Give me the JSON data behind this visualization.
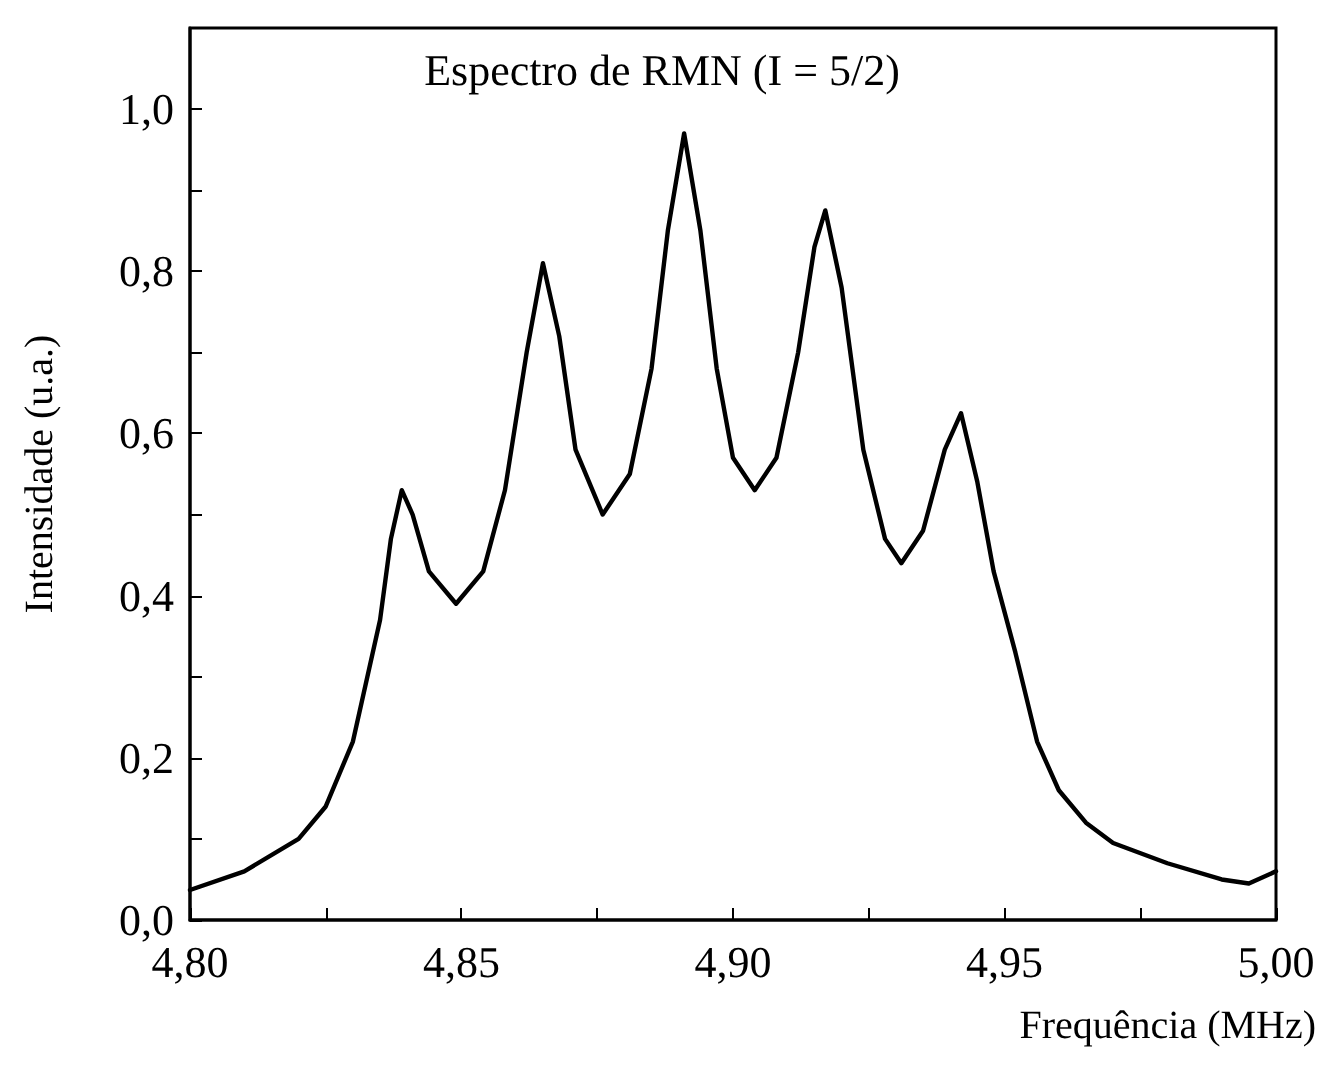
{
  "chart_data": {
    "type": "line",
    "annotations": [
      "Espectro de RMN (I = 5/2)"
    ],
    "xlabel": "Frequência (MHz)",
    "ylabel": "Intensidade (u.a.)",
    "xlim": [
      4.8,
      5.0
    ],
    "xticks": [
      {
        "value": 4.8,
        "label": "4,80"
      },
      {
        "value": 4.825,
        "label": null
      },
      {
        "value": 4.85,
        "label": "4,85"
      },
      {
        "value": 4.875,
        "label": null
      },
      {
        "value": 4.9,
        "label": "4,90"
      },
      {
        "value": 4.925,
        "label": null
      },
      {
        "value": 4.95,
        "label": "4,95"
      },
      {
        "value": 4.975,
        "label": null
      },
      {
        "value": 5.0,
        "label": "5,00"
      }
    ],
    "ylim": [
      0,
      1.1
    ],
    "yticks": [
      {
        "value": 0,
        "label": "0,0"
      },
      {
        "value": 0.1,
        "label": null
      },
      {
        "value": 0.2,
        "label": "0,2"
      },
      {
        "value": 0.3,
        "label": null
      },
      {
        "value": 0.4,
        "label": "0,4"
      },
      {
        "value": 0.5,
        "label": null
      },
      {
        "value": 0.6,
        "label": "0,6"
      },
      {
        "value": 0.7,
        "label": null
      },
      {
        "value": 0.8,
        "label": "0,8"
      },
      {
        "value": 0.9,
        "label": null
      },
      {
        "value": 1.0,
        "label": "1,0"
      }
    ],
    "grid": false,
    "marker": "none",
    "line_style": "solid",
    "x": [
      4.8,
      4.81,
      4.82,
      4.825,
      4.83,
      4.835,
      4.837,
      4.839,
      4.841,
      4.844,
      4.849,
      4.854,
      4.858,
      4.862,
      4.865,
      4.868,
      4.871,
      4.876,
      4.881,
      4.885,
      4.888,
      4.891,
      4.894,
      4.897,
      4.9,
      4.904,
      4.908,
      4.912,
      4.915,
      4.917,
      4.92,
      4.924,
      4.928,
      4.931,
      4.935,
      4.939,
      4.942,
      4.945,
      4.948,
      4.952,
      4.956,
      4.96,
      4.965,
      4.97,
      4.98,
      4.99,
      4.995,
      5.0
    ],
    "series": [
      {
        "color": "#000000",
        "values": [
          0.037,
          0.06,
          0.1,
          0.14,
          0.22,
          0.37,
          0.47,
          0.53,
          0.5,
          0.43,
          0.39,
          0.43,
          0.53,
          0.7,
          0.81,
          0.72,
          0.58,
          0.5,
          0.55,
          0.68,
          0.85,
          0.97,
          0.85,
          0.68,
          0.57,
          0.53,
          0.57,
          0.7,
          0.83,
          0.875,
          0.78,
          0.58,
          0.47,
          0.44,
          0.48,
          0.58,
          0.625,
          0.54,
          0.43,
          0.33,
          0.22,
          0.16,
          0.12,
          0.095,
          0.07,
          0.05,
          0.045,
          0.06
        ]
      }
    ]
  }
}
